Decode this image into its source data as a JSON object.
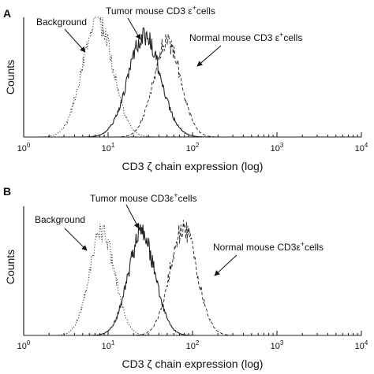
{
  "chart_data": [
    {
      "panel": "A",
      "type": "line",
      "xlabel": "CD3 ζ chain expression (log)",
      "ylabel": "Counts",
      "xscale": "log",
      "xlim": [
        1,
        10000
      ],
      "x_ticks": [
        "10",
        "10",
        "10",
        "10",
        "10"
      ],
      "x_tick_exponents": [
        "0",
        "1",
        "2",
        "3",
        "4"
      ],
      "y_ticks": [],
      "grid": false,
      "series": [
        {
          "name": "Background",
          "style": "dotted",
          "peak_x": 7.5,
          "log_sd": 0.18,
          "peak_count": 0.98
        },
        {
          "name": "Tumor mouse CD3 ε+cells",
          "style": "solid",
          "peak_x": 27,
          "log_sd": 0.19,
          "peak_count": 0.84
        },
        {
          "name": "Normal mouse CD3 ε+cells",
          "style": "dashed",
          "peak_x": 50,
          "log_sd": 0.16,
          "peak_count": 0.8
        }
      ],
      "annotations": [
        {
          "series": 0,
          "text": "Background",
          "superscript": ""
        },
        {
          "series": 1,
          "text": "Tumor mouse CD3 ε",
          "superscript": "+",
          "suffix": "cells"
        },
        {
          "series": 2,
          "text": "Normal mouse CD3 ε",
          "superscript": "+",
          "suffix": "cells"
        }
      ]
    },
    {
      "panel": "B",
      "type": "line",
      "xlabel": "CD3 ζ chain expression (log)",
      "ylabel": "Counts",
      "xscale": "log",
      "xlim": [
        1,
        10000
      ],
      "x_ticks": [
        "10",
        "10",
        "10",
        "10",
        "10"
      ],
      "x_tick_exponents": [
        "0",
        "1",
        "2",
        "3",
        "4"
      ],
      "y_ticks": [],
      "grid": false,
      "series": [
        {
          "name": "Background",
          "style": "dotted",
          "peak_x": 8.5,
          "log_sd": 0.15,
          "peak_count": 0.8
        },
        {
          "name": "Tumor mouse CD3ε+cells",
          "style": "solid",
          "peak_x": 25,
          "log_sd": 0.16,
          "peak_count": 0.78
        },
        {
          "name": "Normal mouse CD3ε+cells",
          "style": "dashed",
          "peak_x": 78,
          "log_sd": 0.16,
          "peak_count": 0.83
        }
      ],
      "annotations": [
        {
          "series": 0,
          "text": "Background",
          "superscript": ""
        },
        {
          "series": 1,
          "text": "Tumor mouse CD3ε",
          "superscript": "+",
          "suffix": "cells"
        },
        {
          "series": 2,
          "text": "Normal mouse CD3ε",
          "superscript": "+",
          "suffix": "cells"
        }
      ]
    }
  ]
}
